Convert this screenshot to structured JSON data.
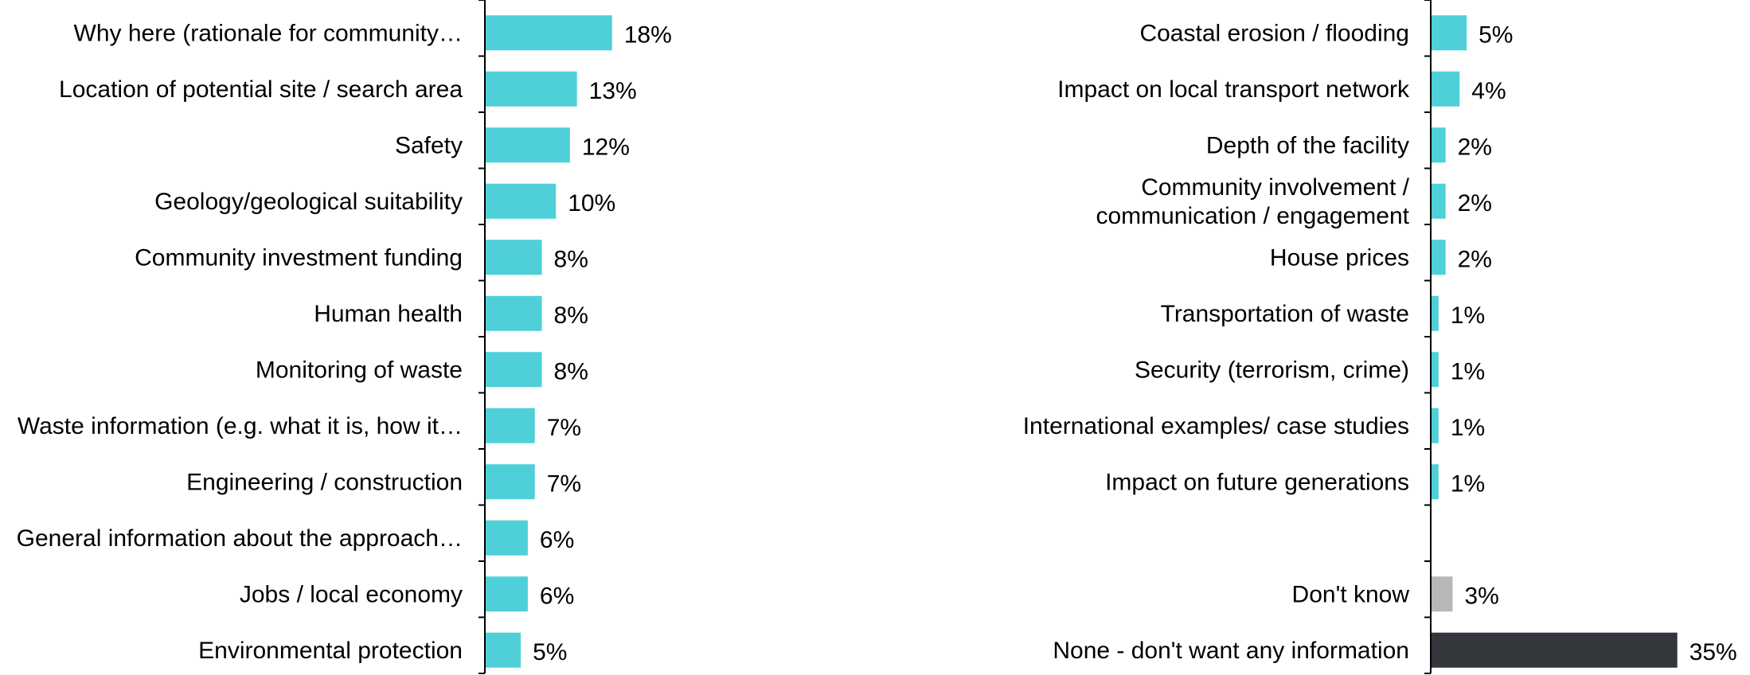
{
  "chart_data": [
    {
      "type": "bar",
      "orientation": "horizontal",
      "categories": [
        "Why here (rationale for community…",
        "Location of potential site / search area",
        "Safety",
        "Geology/geological suitability",
        "Community investment funding",
        "Human health",
        "Monitoring of waste",
        "Waste information (e.g. what it is, how it…",
        "Engineering / construction",
        "General information about the approach…",
        "Jobs / local economy",
        "Environmental protection"
      ],
      "values": [
        18,
        13,
        12,
        10,
        8,
        8,
        8,
        7,
        7,
        6,
        6,
        5
      ],
      "value_labels": [
        "18%",
        "13%",
        "12%",
        "10%",
        "8%",
        "8%",
        "8%",
        "7%",
        "7%",
        "6%",
        "6%",
        "5%"
      ],
      "colors": [
        "#4fd0d8",
        "#4fd0d8",
        "#4fd0d8",
        "#4fd0d8",
        "#4fd0d8",
        "#4fd0d8",
        "#4fd0d8",
        "#4fd0d8",
        "#4fd0d8",
        "#4fd0d8",
        "#4fd0d8",
        "#4fd0d8"
      ],
      "xlim": [
        0,
        35
      ],
      "grid": false
    },
    {
      "type": "bar",
      "orientation": "horizontal",
      "categories": [
        "Coastal erosion / flooding",
        "Impact on local transport network",
        "Depth of the facility",
        "Community involvement / communication / engagement",
        "House prices",
        "Transportation of waste",
        "Security (terrorism, crime)",
        "International examples/ case studies",
        "Impact on future generations",
        "",
        "Don't know",
        "None - don't want any information"
      ],
      "category_lines": [
        [
          "Coastal erosion / flooding"
        ],
        [
          "Impact on local transport network"
        ],
        [
          "Depth of the facility"
        ],
        [
          "Community involvement /",
          "communication / engagement"
        ],
        [
          "House prices"
        ],
        [
          "Transportation of waste"
        ],
        [
          "Security (terrorism, crime)"
        ],
        [
          "International examples/ case studies"
        ],
        [
          "Impact on future generations"
        ],
        [],
        [
          "Don't know"
        ],
        [
          "None - don't want any information"
        ]
      ],
      "values": [
        5,
        4,
        2,
        2,
        2,
        1,
        1,
        1,
        1,
        null,
        3,
        35
      ],
      "value_labels": [
        "5%",
        "4%",
        "2%",
        "2%",
        "2%",
        "1%",
        "1%",
        "1%",
        "1%",
        "",
        "3%",
        "35%"
      ],
      "colors": [
        "#4fd0d8",
        "#4fd0d8",
        "#4fd0d8",
        "#4fd0d8",
        "#4fd0d8",
        "#4fd0d8",
        "#4fd0d8",
        "#4fd0d8",
        "#4fd0d8",
        "#4fd0d8",
        "#b7b7b7",
        "#33373b"
      ],
      "xlim": [
        0,
        35
      ],
      "grid": false
    }
  ]
}
